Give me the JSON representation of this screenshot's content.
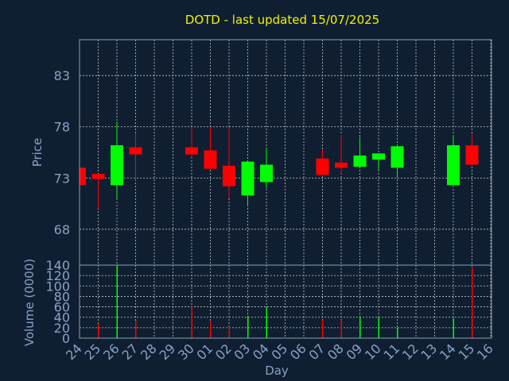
{
  "chart_data": [
    {
      "type": "candlestick",
      "title": "DOTD - last updated 15/07/2025",
      "ylabel": "Price",
      "ylim": [
        64.5,
        86.5
      ],
      "yticks": [
        68,
        73,
        78,
        83
      ],
      "grid": true,
      "colors": {
        "up": "#00ff00",
        "down": "#ff0000"
      },
      "x": [
        "24",
        "25",
        "26",
        "27",
        "28",
        "29",
        "30",
        "01",
        "02",
        "03",
        "04",
        "05",
        "06",
        "07",
        "08",
        "09",
        "10",
        "11",
        "12",
        "13",
        "14",
        "15",
        "16"
      ],
      "candles": [
        {
          "x": "24",
          "open": 74.0,
          "high": 74.0,
          "low": 72.3,
          "close": 72.3
        },
        {
          "x": "25",
          "open": 73.4,
          "high": 73.4,
          "low": 70.0,
          "close": 72.9
        },
        {
          "x": "26",
          "open": 72.3,
          "high": 78.5,
          "low": 71.0,
          "close": 76.2
        },
        {
          "x": "27",
          "open": 76.0,
          "high": 77.4,
          "low": 72.8,
          "close": 75.3
        },
        {
          "x": "30",
          "open": 76.0,
          "high": 78.0,
          "low": 75.0,
          "close": 75.3
        },
        {
          "x": "01",
          "open": 75.7,
          "high": 78.0,
          "low": 73.9,
          "close": 73.9
        },
        {
          "x": "02",
          "open": 74.2,
          "high": 78.0,
          "low": 71.0,
          "close": 72.2
        },
        {
          "x": "03",
          "open": 71.3,
          "high": 74.6,
          "low": 70.2,
          "close": 74.6
        },
        {
          "x": "04",
          "open": 72.6,
          "high": 75.9,
          "low": 72.0,
          "close": 74.3
        },
        {
          "x": "07",
          "open": 74.9,
          "high": 75.8,
          "low": 73.3,
          "close": 73.3
        },
        {
          "x": "08",
          "open": 74.5,
          "high": 77.2,
          "low": 73.4,
          "close": 74.0
        },
        {
          "x": "09",
          "open": 74.1,
          "high": 77.0,
          "low": 74.1,
          "close": 75.2
        },
        {
          "x": "10",
          "open": 74.8,
          "high": 75.4,
          "low": 73.8,
          "close": 75.4
        },
        {
          "x": "11",
          "open": 74.0,
          "high": 76.1,
          "low": 73.0,
          "close": 76.1
        },
        {
          "x": "14",
          "open": 72.3,
          "high": 77.2,
          "low": 72.3,
          "close": 76.2
        },
        {
          "x": "15",
          "open": 76.2,
          "high": 77.3,
          "low": 74.3,
          "close": 74.3
        }
      ]
    },
    {
      "type": "bar",
      "ylabel": "Volume (0000)",
      "xlabel": "Day",
      "ylim": [
        0,
        140
      ],
      "yticks": [
        0,
        20,
        40,
        60,
        80,
        100,
        120,
        140
      ],
      "categories": [
        "24",
        "25",
        "26",
        "27",
        "30",
        "01",
        "02",
        "03",
        "04",
        "07",
        "08",
        "09",
        "10",
        "11",
        "14",
        "15"
      ],
      "values": [
        0,
        28,
        140,
        33,
        60,
        32,
        22,
        42,
        60,
        35,
        35,
        40,
        40,
        20,
        38,
        135
      ],
      "bar_colors": [
        "#ff0000",
        "#ff0000",
        "#00ff00",
        "#ff0000",
        "#ff0000",
        "#ff0000",
        "#ff0000",
        "#00ff00",
        "#00ff00",
        "#ff0000",
        "#ff0000",
        "#00ff00",
        "#00ff00",
        "#00ff00",
        "#00ff00",
        "#ff0000"
      ]
    }
  ]
}
